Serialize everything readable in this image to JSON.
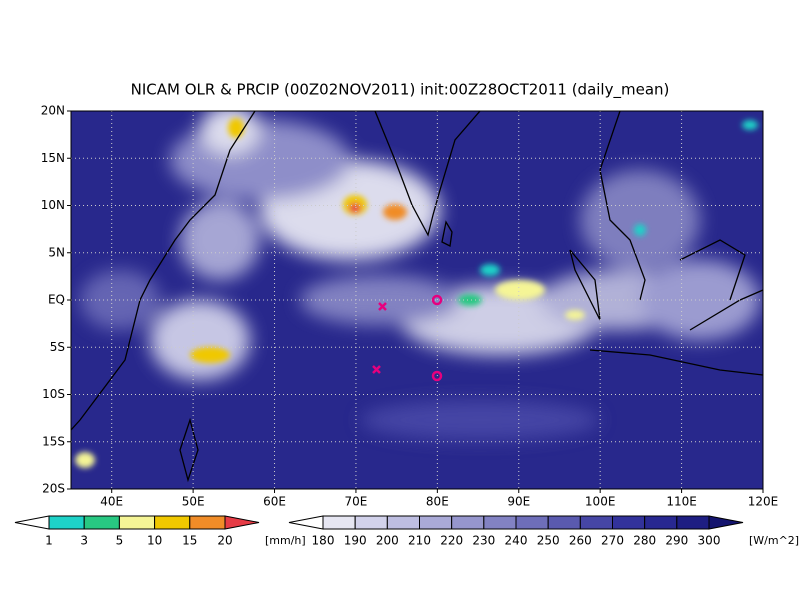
{
  "map": {
    "title": "NICAM OLR & PRCIP (00Z02NOV2011) init:00Z28OCT2011 (daily_mean)",
    "xlim": [
      35,
      120
    ],
    "ylim": [
      -20,
      20
    ],
    "xticks": [
      {
        "value": 40,
        "label": "40E"
      },
      {
        "value": 50,
        "label": "50E"
      },
      {
        "value": 60,
        "label": "60E"
      },
      {
        "value": 70,
        "label": "70E"
      },
      {
        "value": 80,
        "label": "80E"
      },
      {
        "value": 90,
        "label": "90E"
      },
      {
        "value": 100,
        "label": "100E"
      },
      {
        "value": 110,
        "label": "110E"
      },
      {
        "value": 120,
        "label": "120E"
      }
    ],
    "yticks": [
      {
        "value": 20,
        "label": "20N"
      },
      {
        "value": 15,
        "label": "15N"
      },
      {
        "value": 10,
        "label": "10N"
      },
      {
        "value": 5,
        "label": "5N"
      },
      {
        "value": 0,
        "label": "EQ"
      },
      {
        "value": -5,
        "label": "5S"
      },
      {
        "value": -10,
        "label": "10S"
      },
      {
        "value": -15,
        "label": "15S"
      },
      {
        "value": -20,
        "label": "20S"
      }
    ]
  },
  "precip_colorbar": {
    "labels": [
      "1",
      "3",
      "5",
      "10",
      "15",
      "20"
    ],
    "unit": "[mm/h]",
    "colors": [
      "#ffffff",
      "#1ed2c8",
      "#28c882",
      "#f5f596",
      "#f0c800",
      "#f08c28",
      "#e63c46"
    ]
  },
  "olr_colorbar": {
    "labels": [
      "180",
      "190",
      "200",
      "210",
      "220",
      "230",
      "240",
      "250",
      "260",
      "270",
      "280",
      "290",
      "300"
    ],
    "unit": "[W/m^2]",
    "colors": [
      "#ffffff",
      "#e6e6f2",
      "#d2d2eb",
      "#bebee1",
      "#aaaad7",
      "#9696cd",
      "#8282c3",
      "#6e6eb9",
      "#5a5aaf",
      "#4646a5",
      "#32329b",
      "#282891",
      "#1e1e82",
      "#14146e"
    ]
  }
}
